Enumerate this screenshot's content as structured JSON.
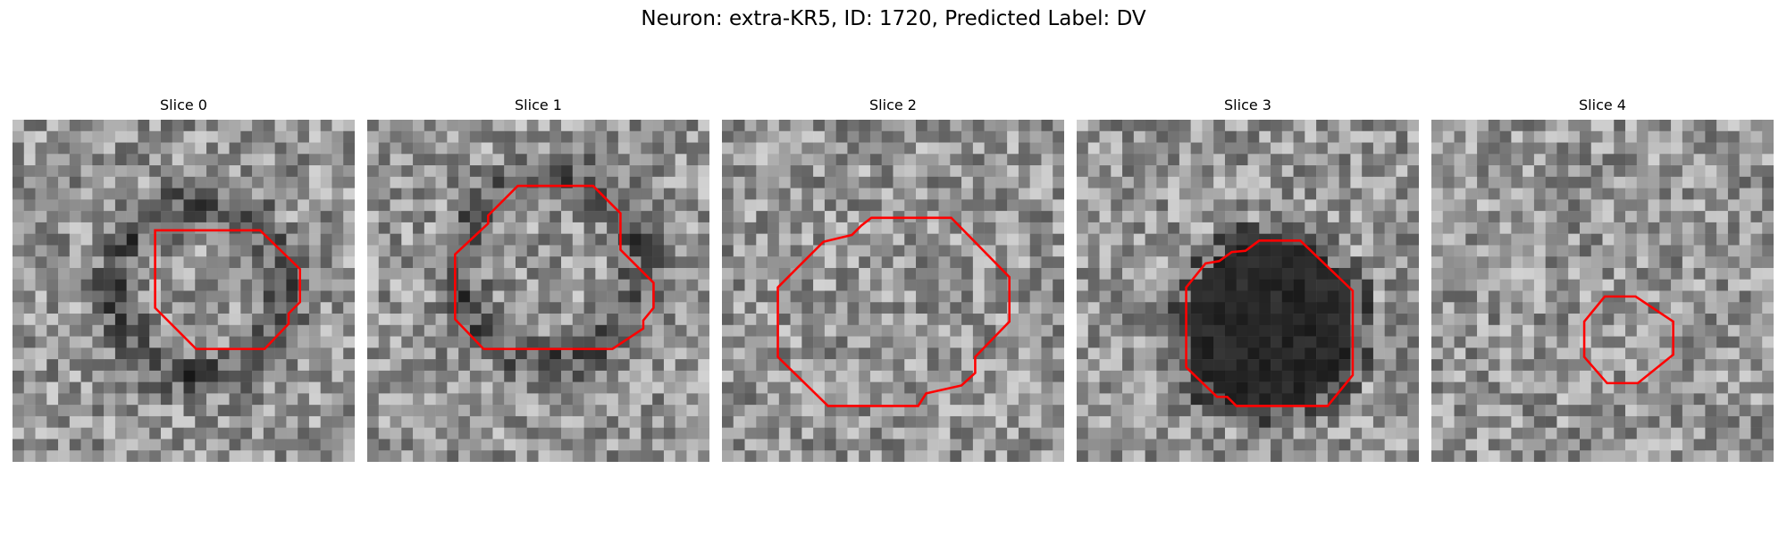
{
  "figure": {
    "title": "Neuron: extra-KR5, ID: 1720, Predicted Label: DV",
    "contour_color": "#ff0000",
    "slices": [
      {
        "title": "Slice 0",
        "dark": "ring"
      },
      {
        "title": "Slice 1",
        "dark": "ring"
      },
      {
        "title": "Slice 2",
        "dark": "none"
      },
      {
        "title": "Slice 3",
        "dark": "filled"
      },
      {
        "title": "Slice 4",
        "dark": "none"
      }
    ]
  }
}
